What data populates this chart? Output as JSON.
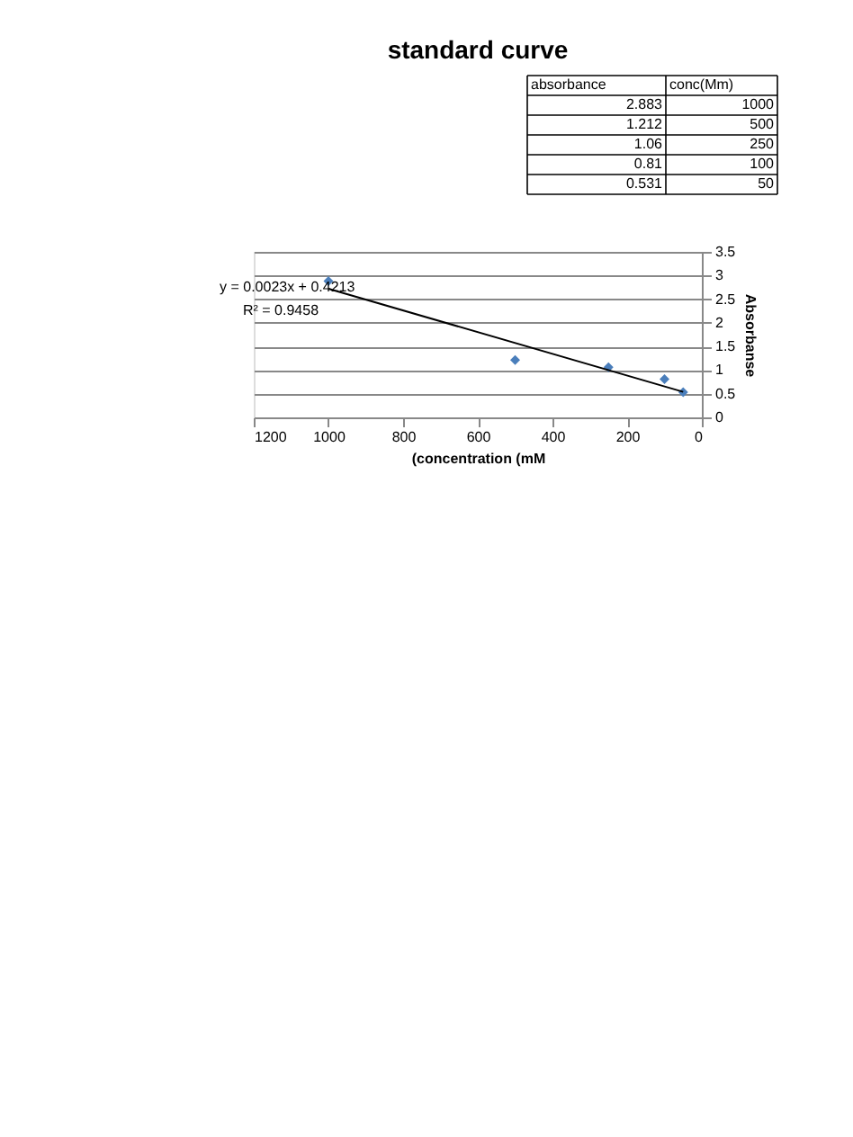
{
  "chart_data": {
    "type": "scatter",
    "title": "standard curve",
    "xlabel": "(concentration (mM",
    "ylabel": "Absorbanse",
    "x": [
      1000,
      500,
      250,
      100,
      50
    ],
    "series": [
      {
        "color": "#4a7ebb",
        "values": [
          2.883,
          1.212,
          1.06,
          0.81,
          0.531
        ],
        "marker": "diamond"
      },
      {
        "type": "line",
        "color": "#000000",
        "x": [
          1000,
          50
        ],
        "values": [
          2.72,
          0.54
        ],
        "marker": "none"
      }
    ],
    "xlim": [
      1200,
      0
    ],
    "xticks": [
      1200,
      1000,
      800,
      600,
      400,
      200,
      0
    ],
    "ylim": [
      0,
      3.5
    ],
    "yticks": [
      0,
      0.5,
      1,
      1.5,
      2,
      2.5,
      3,
      3.5
    ],
    "grid": "y",
    "annotations": [
      "y = 0.0023x + 0.4213",
      "R² = 0.9458",
      "absorbance",
      "conc(Mm)",
      "2.883",
      "1000",
      "1.212",
      "500",
      "1.06",
      "250",
      "0.81",
      "100",
      "0.531",
      "50"
    ]
  }
}
